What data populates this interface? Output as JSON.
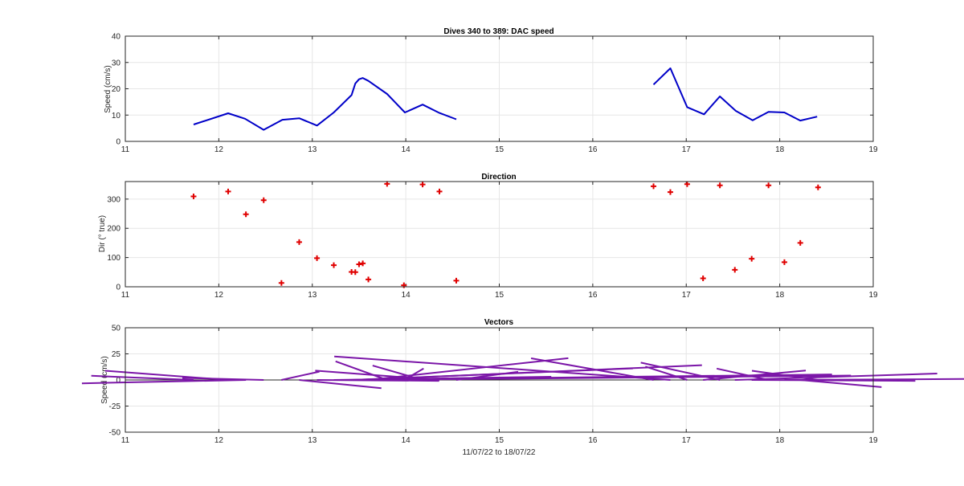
{
  "chart_data": [
    {
      "type": "line",
      "title": "Dives 340 to 389: DAC speed",
      "xlabel": "",
      "ylabel": "Speed (cm/s)",
      "xlim": [
        11,
        19
      ],
      "ylim": [
        0,
        40
      ],
      "xticks": [
        "11",
        "12",
        "13",
        "14",
        "15",
        "16",
        "17",
        "18",
        "19"
      ],
      "yticks": [
        "0",
        "10",
        "20",
        "30",
        "40"
      ],
      "grid": true,
      "color": "#0000c8",
      "segments": [
        {
          "x": [
            11.73,
            12.1,
            12.28,
            12.48,
            12.68,
            12.86,
            13.05,
            13.23,
            13.42,
            13.46,
            13.5,
            13.54,
            13.6,
            13.8,
            13.99,
            14.18,
            14.36,
            14.54
          ],
          "y": [
            6.4,
            10.7,
            8.6,
            4.4,
            8.2,
            8.8,
            6.0,
            11.0,
            17.6,
            22.0,
            23.6,
            24.1,
            23.0,
            18.0,
            11.0,
            14.0,
            10.8,
            8.4
          ]
        },
        {
          "x": [
            16.65,
            16.83,
            17.01,
            17.19,
            17.36,
            17.53,
            17.71,
            17.88,
            18.05,
            18.22,
            18.4
          ],
          "y": [
            21.6,
            27.8,
            13.0,
            10.3,
            17.1,
            11.6,
            8.0,
            11.2,
            11.0,
            7.9,
            9.4
          ]
        }
      ]
    },
    {
      "type": "scatter",
      "title": "Direction",
      "xlabel": "",
      "ylabel": "Dir (° true)",
      "xlim": [
        11,
        19
      ],
      "ylim": [
        0,
        360
      ],
      "xticks": [
        "11",
        "12",
        "13",
        "14",
        "15",
        "16",
        "17",
        "18",
        "19"
      ],
      "yticks": [
        "0",
        "100",
        "200",
        "300"
      ],
      "grid": true,
      "marker": "+",
      "color": "#e00000",
      "x": [
        11.73,
        12.1,
        12.29,
        12.48,
        12.67,
        12.86,
        13.05,
        13.23,
        13.42,
        13.46,
        13.5,
        13.54,
        13.6,
        13.8,
        13.98,
        14.18,
        14.36,
        14.54,
        16.65,
        16.83,
        17.01,
        17.18,
        17.36,
        17.52,
        17.7,
        17.88,
        18.05,
        18.22,
        18.41
      ],
      "y": [
        309,
        326,
        248,
        296,
        13,
        153,
        98,
        74,
        51,
        50,
        77,
        80,
        25,
        352,
        5,
        350,
        326,
        21,
        344,
        324,
        351,
        29,
        347,
        58,
        96,
        347,
        84,
        150,
        340
      ]
    },
    {
      "type": "line",
      "subtype": "vector",
      "title": "Vectors",
      "xlabel": "11/07/22 to 18/07/22",
      "ylabel": "Speed (cm/s)",
      "xlim": [
        11,
        19
      ],
      "ylim": [
        -50,
        50
      ],
      "xticks": [
        "11",
        "12",
        "13",
        "14",
        "15",
        "16",
        "17",
        "18",
        "19"
      ],
      "yticks": [
        "-50",
        "-25",
        "0",
        "25",
        "50"
      ],
      "grid": true,
      "color": "#7b16a8",
      "zero_line": true,
      "vectors": [
        {
          "x": 11.73,
          "speed": 6.4,
          "dir": 309
        },
        {
          "x": 12.1,
          "speed": 10.7,
          "dir": 326
        },
        {
          "x": 12.29,
          "speed": 8.6,
          "dir": 248
        },
        {
          "x": 12.48,
          "speed": 4.4,
          "dir": 296
        },
        {
          "x": 12.67,
          "speed": 8.2,
          "dir": 13
        },
        {
          "x": 12.86,
          "speed": 8.8,
          "dir": 153
        },
        {
          "x": 13.05,
          "speed": 6.0,
          "dir": 98
        },
        {
          "x": 13.23,
          "speed": 11.0,
          "dir": 74
        },
        {
          "x": 13.42,
          "speed": 17.6,
          "dir": 51
        },
        {
          "x": 13.46,
          "speed": 22.0,
          "dir": 50
        },
        {
          "x": 13.5,
          "speed": 23.6,
          "dir": 77
        },
        {
          "x": 13.54,
          "speed": 24.1,
          "dir": 80
        },
        {
          "x": 13.6,
          "speed": 23.0,
          "dir": 25
        },
        {
          "x": 13.8,
          "speed": 18.0,
          "dir": 352
        },
        {
          "x": 13.98,
          "speed": 11.0,
          "dir": 5
        },
        {
          "x": 14.18,
          "speed": 14.0,
          "dir": 350
        },
        {
          "x": 14.36,
          "speed": 10.8,
          "dir": 326
        },
        {
          "x": 14.54,
          "speed": 8.4,
          "dir": 21
        },
        {
          "x": 16.65,
          "speed": 21.6,
          "dir": 344
        },
        {
          "x": 16.83,
          "speed": 27.8,
          "dir": 324
        },
        {
          "x": 17.01,
          "speed": 13.0,
          "dir": 351
        },
        {
          "x": 17.18,
          "speed": 10.3,
          "dir": 29
        },
        {
          "x": 17.36,
          "speed": 17.1,
          "dir": 347
        },
        {
          "x": 17.52,
          "speed": 11.6,
          "dir": 58
        },
        {
          "x": 17.7,
          "speed": 8.0,
          "dir": 96
        },
        {
          "x": 17.88,
          "speed": 11.2,
          "dir": 347
        },
        {
          "x": 18.05,
          "speed": 11.0,
          "dir": 84
        },
        {
          "x": 18.22,
          "speed": 7.9,
          "dir": 150
        },
        {
          "x": 18.41,
          "speed": 9.4,
          "dir": 340
        }
      ]
    }
  ]
}
